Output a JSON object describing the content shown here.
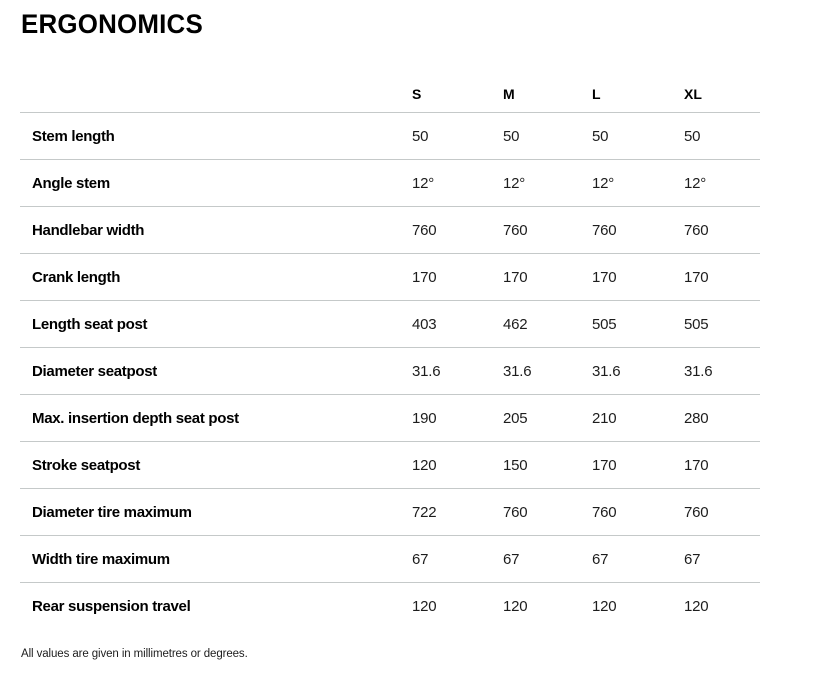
{
  "page": {
    "title": "ERGONOMICS",
    "footnote": "All values are given in millimetres or degrees."
  },
  "colors": {
    "divider": "#c5c9c9",
    "heading_text": "#000000",
    "body_text": "#1d1d1d",
    "background": "#ffffff"
  },
  "table": {
    "columns": [
      "S",
      "M",
      "L",
      "XL"
    ],
    "rows": [
      {
        "label": "Stem length",
        "values": [
          "50",
          "50",
          "50",
          "50"
        ]
      },
      {
        "label": "Angle stem",
        "values": [
          "12°",
          "12°",
          "12°",
          "12°"
        ]
      },
      {
        "label": "Handlebar width",
        "values": [
          "760",
          "760",
          "760",
          "760"
        ]
      },
      {
        "label": "Crank length",
        "values": [
          "170",
          "170",
          "170",
          "170"
        ]
      },
      {
        "label": "Length seat post",
        "values": [
          "403",
          "462",
          "505",
          "505"
        ]
      },
      {
        "label": "Diameter seatpost",
        "values": [
          "31.6",
          "31.6",
          "31.6",
          "31.6"
        ]
      },
      {
        "label": "Max. insertion depth seat post",
        "values": [
          "190",
          "205",
          "210",
          "280"
        ]
      },
      {
        "label": "Stroke seatpost",
        "values": [
          "120",
          "150",
          "170",
          "170"
        ]
      },
      {
        "label": "Diameter tire maximum",
        "values": [
          "722",
          "760",
          "760",
          "760"
        ]
      },
      {
        "label": "Width tire maximum",
        "values": [
          "67",
          "67",
          "67",
          "67"
        ]
      },
      {
        "label": "Rear suspension travel",
        "values": [
          "120",
          "120",
          "120",
          "120"
        ]
      }
    ]
  }
}
